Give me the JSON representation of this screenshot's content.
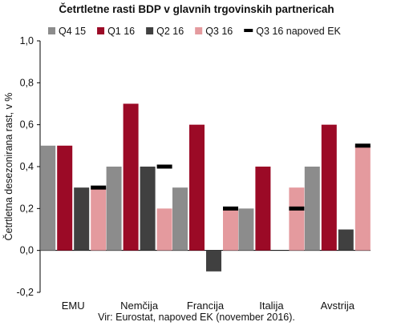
{
  "chart_data": {
    "type": "bar",
    "title": "Četrtletne rasti BDP v glavnih trgovinskih partnericah",
    "ylabel": "Četrtletna desezonirana rast, v %",
    "xlabel": "",
    "ylim": [
      -0.2,
      1.0
    ],
    "yticks": [
      "-0,2",
      "0,0",
      "0,2",
      "0,4",
      "0,6",
      "0,8",
      "1,0"
    ],
    "categories": [
      "EMU",
      "Nemčija",
      "Francija",
      "Italija",
      "Avstrija"
    ],
    "series": [
      {
        "name": "Q4 15",
        "color": "#8c8c8c",
        "values": [
          0.5,
          0.4,
          0.3,
          0.2,
          0.4
        ]
      },
      {
        "name": "Q1 16",
        "color": "#9b0a26",
        "values": [
          0.5,
          0.7,
          0.6,
          0.4,
          0.6
        ]
      },
      {
        "name": "Q2 16",
        "color": "#404040",
        "values": [
          0.3,
          0.4,
          -0.1,
          0.0,
          0.1
        ]
      },
      {
        "name": "Q3 16",
        "color": "#e49a9e",
        "values": [
          0.3,
          0.2,
          0.2,
          0.3,
          0.5
        ]
      }
    ],
    "forecast": {
      "name": "Q3 16 napoved EK",
      "color": "#000000",
      "values": [
        0.3,
        0.4,
        0.2,
        0.2,
        0.5
      ]
    },
    "legend_position": "top",
    "grid": false
  },
  "source": "Vir: Eurostat, napoved EK (november 2016)."
}
